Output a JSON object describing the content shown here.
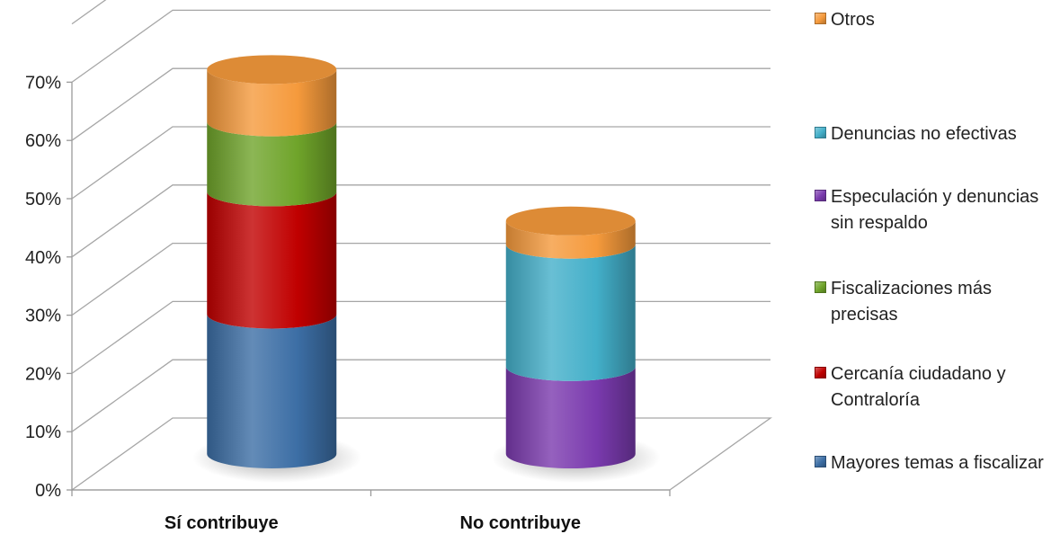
{
  "chart_data": {
    "type": "bar",
    "variant": "stacked-3d-cylinder",
    "categories": [
      "Sí contribuye",
      "No contribuye"
    ],
    "series": [
      {
        "name": "Mayores temas a fiscalizar",
        "color": "#3C6EA5",
        "values": [
          0.24,
          0
        ]
      },
      {
        "name": "Cercanía ciudadano y Contraloría",
        "color": "#C00000",
        "values": [
          0.21,
          0
        ]
      },
      {
        "name": "Fiscalizaciones más precisas",
        "color": "#6FA42A",
        "values": [
          0.12,
          0
        ]
      },
      {
        "name": "Especulación y denuncias sin respaldo",
        "color": "#7A3AAE",
        "values": [
          0,
          0.15
        ]
      },
      {
        "name": "Denuncias no efectivas",
        "color": "#43AFC9",
        "values": [
          0,
          0.21
        ]
      },
      {
        "name": "Otros",
        "color": "#F59A3C",
        "values": [
          0.09,
          0.04
        ]
      }
    ],
    "y_ticks": [
      "0%",
      "10%",
      "20%",
      "30%",
      "40%",
      "50%",
      "60%",
      "70%"
    ],
    "ylim": [
      0,
      0.8
    ],
    "grid": true,
    "legend_position": "right",
    "title": "",
    "xlabel": "",
    "ylabel": ""
  }
}
